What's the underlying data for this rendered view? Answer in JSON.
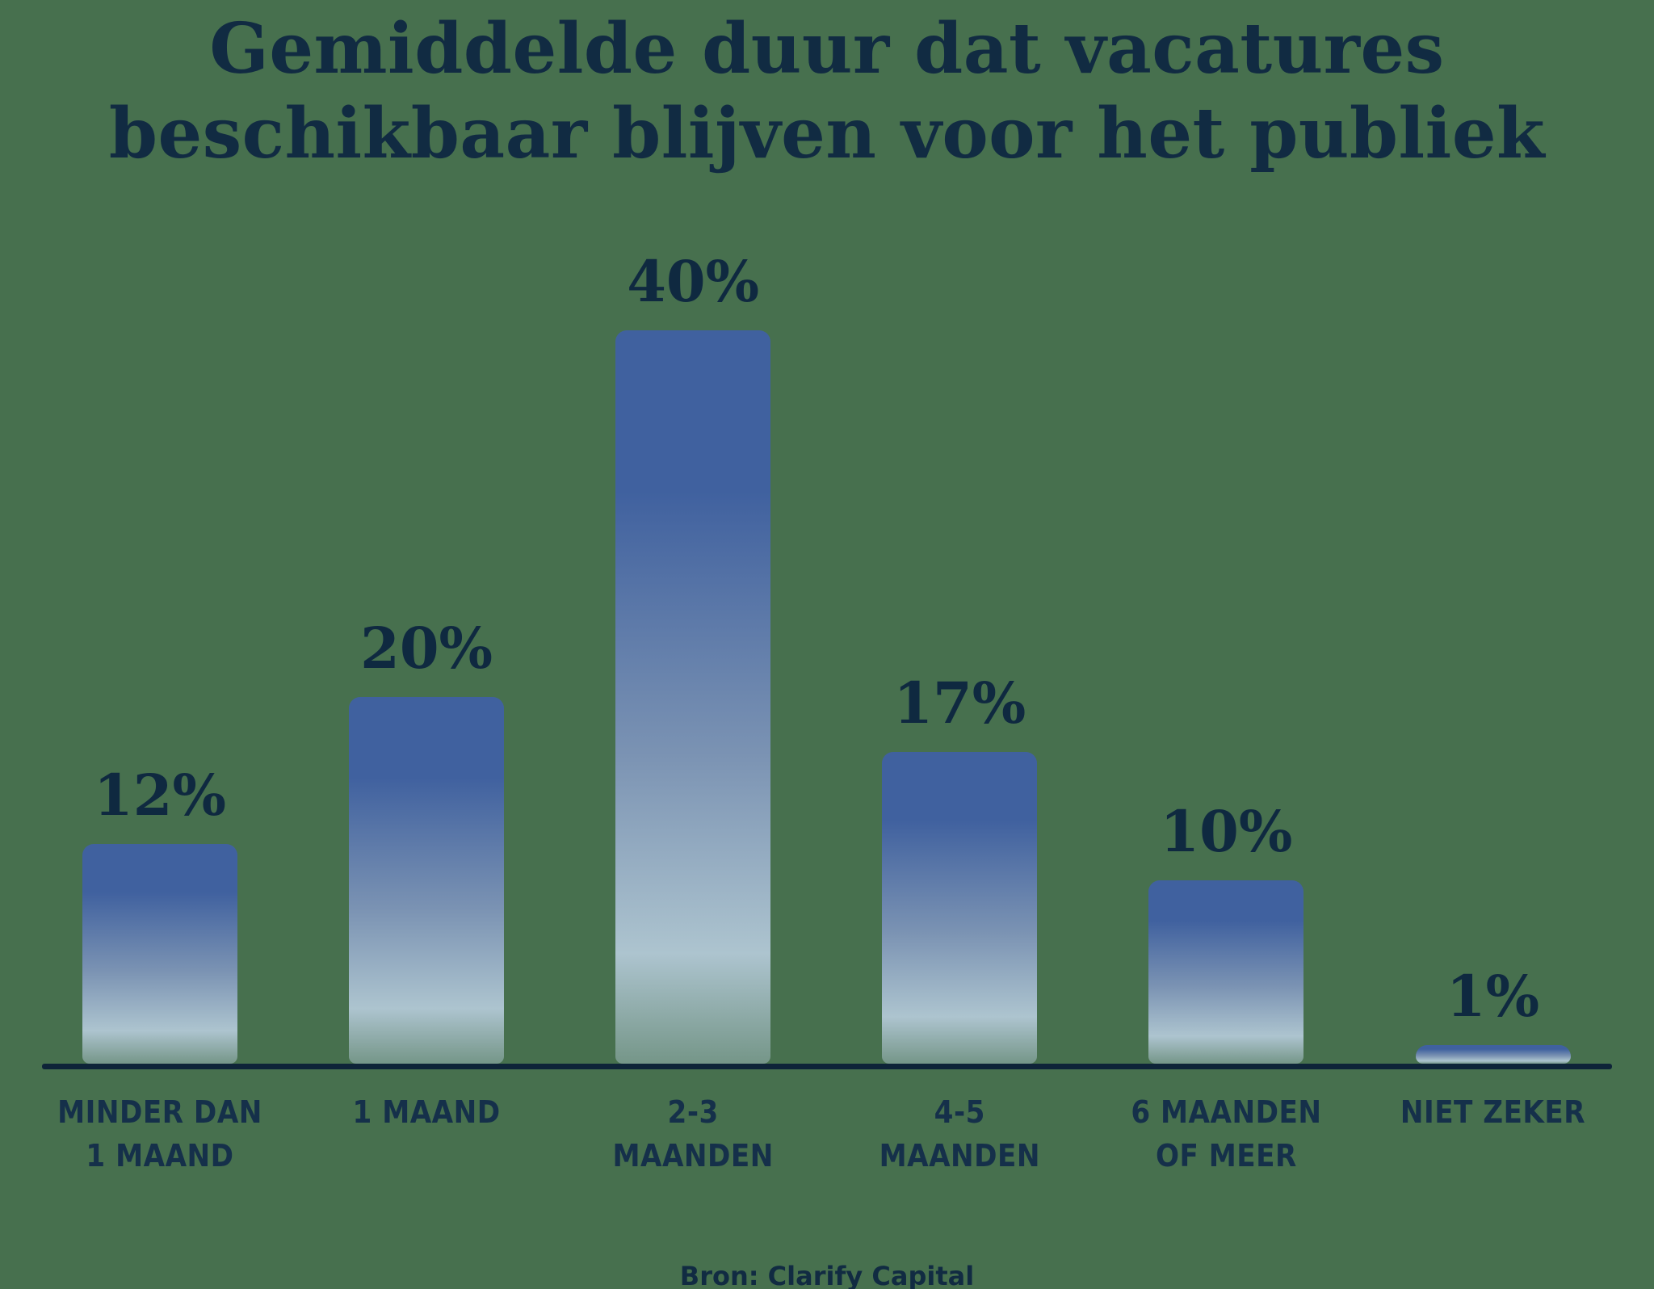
{
  "page": {
    "background_color": "#47704e"
  },
  "title": {
    "lines": [
      "Gemiddelde duur dat vacatures",
      "beschikbaar blijven voor het publiek"
    ],
    "color": "#112b42"
  },
  "source": {
    "label": "Bron: Clarify Capital"
  },
  "chart_data": {
    "type": "bar",
    "title": "Gemiddelde duur dat vacatures beschikbaar blijven voor het publiek",
    "categories": [
      "Minder dan 1 maand",
      "1 maand",
      "2-3 maanden",
      "4-5 maanden",
      "6 maanden of meer",
      "Niet zeker"
    ],
    "category_label_lines": [
      [
        "MINDER DAN",
        "1 MAAND"
      ],
      [
        "1 MAAND"
      ],
      [
        "2-3",
        "MAANDEN"
      ],
      [
        "4-5",
        "MAANDEN"
      ],
      [
        "6 MAANDEN",
        "OF MEER"
      ],
      [
        "NIET ZEKER"
      ]
    ],
    "values": [
      12,
      20,
      40,
      17,
      10,
      1
    ],
    "value_labels": [
      "12%",
      "20%",
      "40%",
      "17%",
      "10%",
      "1%"
    ],
    "unit": "%",
    "ylim": [
      0,
      40
    ],
    "grid": false,
    "legend": false,
    "source": "Bron: Clarify Capital",
    "colors": {
      "background": "#47704e",
      "bar_gradient_top": "#40619f",
      "bar_gradient_mid": "#7b93b3",
      "bar_gradient_bottom": "#adc4cf",
      "axis_line": "#0e2438",
      "value_label_text": "#0f2940",
      "category_label_text": "#15304a",
      "title_text": "#112b42"
    }
  }
}
